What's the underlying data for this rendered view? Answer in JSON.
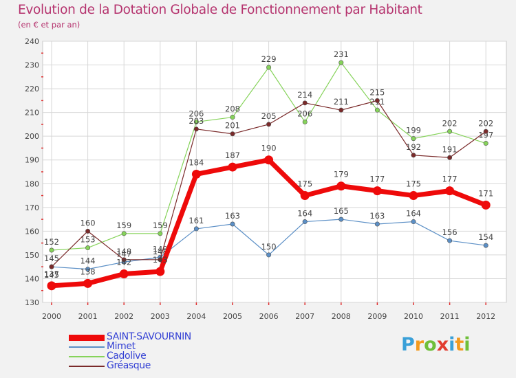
{
  "header": {
    "title": "Evolution de la Dotation Globale de Fonctionnement par Habitant",
    "subtitle": "(en € et par an)"
  },
  "logo": {
    "text": "Proxiti",
    "letters": [
      {
        "ch": "P",
        "color": "#3aa0d8"
      },
      {
        "ch": "r",
        "color": "#f29a1f"
      },
      {
        "ch": "o",
        "color": "#6fbf3a"
      },
      {
        "ch": "x",
        "color": "#e23b2f"
      },
      {
        "ch": "i",
        "color": "#3aa0d8"
      },
      {
        "ch": "t",
        "color": "#f29a1f"
      },
      {
        "ch": "i",
        "color": "#6fbf3a"
      }
    ]
  },
  "colors": {
    "title": "#b5336e",
    "legend_text": "#3340d4",
    "grid": "#d7d7d7",
    "axis_tick_red": "#e03030",
    "background": "#f2f2f2",
    "plot_background": "#ffffff"
  },
  "chart_data": {
    "type": "line",
    "title": "Evolution de la Dotation Globale de Fonctionnement par Habitant",
    "subtitle": "(en € et par an)",
    "xlabel": "",
    "ylabel": "",
    "x": [
      "2000",
      "2001",
      "2002",
      "2003",
      "2004",
      "2005",
      "2006",
      "2007",
      "2008",
      "2009",
      "2010",
      "2011",
      "2012"
    ],
    "ylim": [
      130,
      240
    ],
    "yticks": [
      130,
      140,
      150,
      160,
      170,
      180,
      190,
      200,
      210,
      220,
      230,
      240
    ],
    "grid": true,
    "legend_position": "bottom-left",
    "series": [
      {
        "name": "Mimet",
        "color": "#5b8fc6",
        "line_width": 1.2,
        "marker_r": 3.2,
        "values": [
          145,
          144,
          147,
          149,
          161,
          163,
          150,
          164,
          165,
          163,
          164,
          156,
          154
        ],
        "labels": [
          "145",
          "144",
          "147",
          "149",
          "161",
          "163",
          "150",
          "164",
          "165",
          "163",
          "164",
          "156",
          "154"
        ],
        "label_pos": [
          "below",
          "above",
          "above",
          "above",
          "above",
          "above",
          "above",
          "above",
          "above",
          "above",
          "above",
          "above",
          "above"
        ]
      },
      {
        "name": "Cadolive",
        "color": "#86d35a",
        "line_width": 1.2,
        "marker_r": 3.2,
        "values": [
          152,
          153,
          159,
          159,
          206,
          208,
          229,
          206,
          231,
          211,
          199,
          202,
          197
        ],
        "labels": [
          "152",
          "153",
          "159",
          "159",
          "206",
          "208",
          "229",
          "206",
          "231",
          "211",
          "199",
          "202",
          "197"
        ],
        "label_pos": [
          "above",
          "above",
          "above",
          "above",
          "above",
          "above",
          "above",
          "above",
          "above",
          "above",
          "above",
          "above",
          "above"
        ]
      },
      {
        "name": "Gréasque",
        "color": "#7a2a2a",
        "line_width": 1.2,
        "marker_r": 3.2,
        "values": [
          145,
          160,
          148,
          148,
          203,
          201,
          205,
          214,
          211,
          215,
          192,
          191,
          202
        ],
        "labels": [
          "145",
          "160",
          "148",
          "148",
          "203",
          "201",
          "205",
          "214",
          "211",
          "215",
          "192",
          "191",
          "202"
        ],
        "label_pos": [
          "above",
          "above",
          "above",
          "above",
          "above",
          "above",
          "above",
          "above",
          "above",
          "above",
          "above",
          "above",
          "above"
        ]
      },
      {
        "name": "SAINT-SAVOURNIN",
        "color": "#ee0a0a",
        "line_width": 7,
        "marker_r": 6.5,
        "values": [
          137,
          138,
          142,
          143,
          184,
          187,
          190,
          175,
          179,
          177,
          175,
          177,
          171
        ],
        "labels": [
          "137",
          "138",
          "142",
          "143",
          "184",
          "187",
          "190",
          "175",
          "179",
          "177",
          "175",
          "177",
          "171"
        ],
        "label_pos": [
          "above",
          "above",
          "above",
          "above",
          "above",
          "above",
          "above",
          "above",
          "above",
          "above",
          "above",
          "above",
          "above"
        ]
      }
    ],
    "legend_order": [
      "SAINT-SAVOURNIN",
      "Mimet",
      "Cadolive",
      "Gréasque"
    ]
  }
}
